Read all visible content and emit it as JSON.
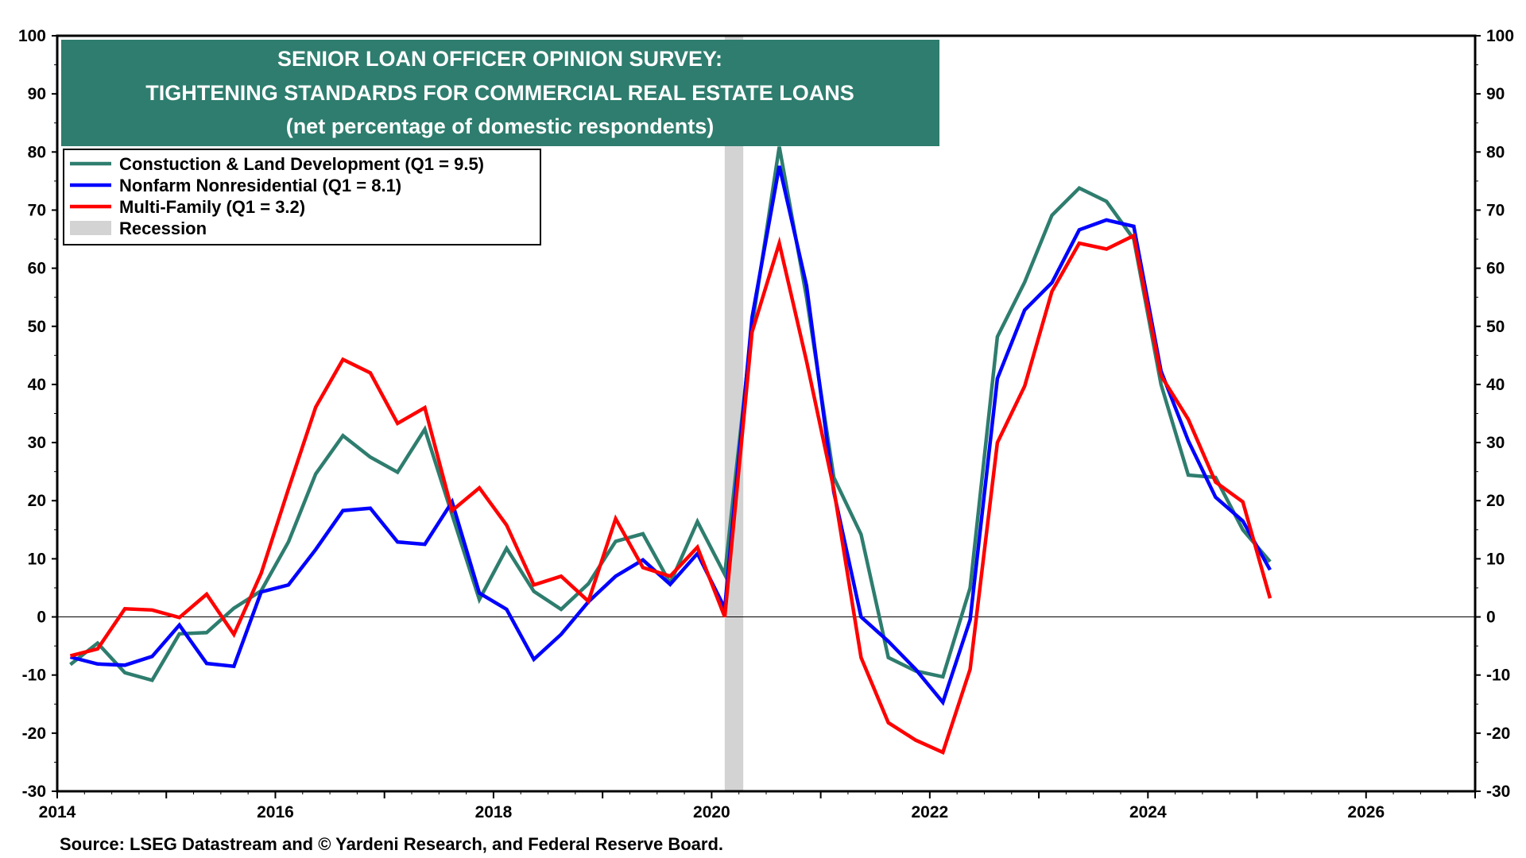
{
  "chart_data": {
    "type": "line",
    "title": "SENIOR LOAN OFFICER OPINION SURVEY:",
    "subtitle": "TIGHTENING STANDARDS FOR COMMERCIAL REAL ESTATE LOANS",
    "note": "(net percentage of domestic respondents)",
    "source": "Source: LSEG Datastream and © Yardeni Research, and Federal Reserve Board.",
    "xlabel": "",
    "ylabel": "",
    "xlim": [
      2014,
      2027
    ],
    "ylim": [
      -30,
      100
    ],
    "x_ticks": [
      2014,
      2016,
      2018,
      2020,
      2022,
      2024,
      2026
    ],
    "y_ticks": [
      -30,
      -20,
      -10,
      0,
      10,
      20,
      30,
      40,
      50,
      60,
      70,
      80,
      90,
      100
    ],
    "grid": false,
    "legend_position": "top-left",
    "recession": {
      "label": "Recession",
      "start": 2020.12,
      "end": 2020.29,
      "color": "#d3d3d3"
    },
    "x": [
      2014.12,
      2014.37,
      2014.62,
      2014.87,
      2015.12,
      2015.37,
      2015.62,
      2015.87,
      2016.12,
      2016.37,
      2016.62,
      2016.87,
      2017.12,
      2017.37,
      2017.62,
      2017.87,
      2018.12,
      2018.37,
      2018.62,
      2018.87,
      2019.12,
      2019.37,
      2019.62,
      2019.87,
      2020.12,
      2020.37,
      2020.62,
      2020.87,
      2021.12,
      2021.37,
      2021.62,
      2021.87,
      2022.12,
      2022.37,
      2022.62,
      2022.87,
      2023.12,
      2023.37,
      2023.62,
      2023.87,
      2024.12,
      2024.37,
      2024.62,
      2024.87,
      2025.12
    ],
    "series": [
      {
        "name": "Constuction & Land Development (Q1 = 9.5)",
        "color": "#2e7d6e",
        "values": [
          -8.2,
          -4.5,
          -9.6,
          -10.9,
          -2.9,
          -2.7,
          1.5,
          4.5,
          12.9,
          24.6,
          31.2,
          27.5,
          24.9,
          32.3,
          17.6,
          3.0,
          11.8,
          4.4,
          1.3,
          5.7,
          13.0,
          14.3,
          5.8,
          16.4,
          7.3,
          50.0,
          80.9,
          55.0,
          24.0,
          14.2,
          -7.0,
          -9.3,
          -10.3,
          5.0,
          48.2,
          57.6,
          69.1,
          73.8,
          71.5,
          65.0,
          40.0,
          24.4,
          24.0,
          15.0,
          9.5
        ]
      },
      {
        "name": "Nonfarm Nonresidential  (Q1 = 8.1)",
        "color": "#0000ff",
        "values": [
          -6.9,
          -8.1,
          -8.3,
          -6.8,
          -1.4,
          -8.0,
          -8.5,
          4.3,
          5.5,
          11.6,
          18.3,
          18.7,
          12.9,
          12.5,
          19.8,
          4.1,
          1.3,
          -7.3,
          -3.0,
          2.6,
          7.0,
          9.8,
          5.6,
          10.9,
          1.5,
          51.5,
          77.6,
          57.0,
          21.5,
          0.0,
          -4.2,
          -9.0,
          -14.7,
          -0.5,
          41.0,
          52.8,
          57.5,
          66.6,
          68.3,
          67.2,
          42.3,
          30.3,
          20.6,
          16.5,
          8.1
        ]
      },
      {
        "name": "Multi-Family (Q1 = 3.2)",
        "color": "#ff0000",
        "values": [
          -6.7,
          -5.5,
          1.4,
          1.2,
          -0.1,
          3.9,
          -3.0,
          7.5,
          22.0,
          36.1,
          44.3,
          42.0,
          33.3,
          36.0,
          18.3,
          22.2,
          15.8,
          5.5,
          7.0,
          2.7,
          16.9,
          8.5,
          7.0,
          12.0,
          0.0,
          49.0,
          64.3,
          44.0,
          22.0,
          -7.0,
          -18.2,
          -21.2,
          -23.3,
          -9.0,
          30.0,
          39.7,
          56.0,
          64.3,
          63.3,
          65.6,
          41.5,
          34.0,
          23.2,
          19.8,
          3.2
        ]
      }
    ]
  }
}
